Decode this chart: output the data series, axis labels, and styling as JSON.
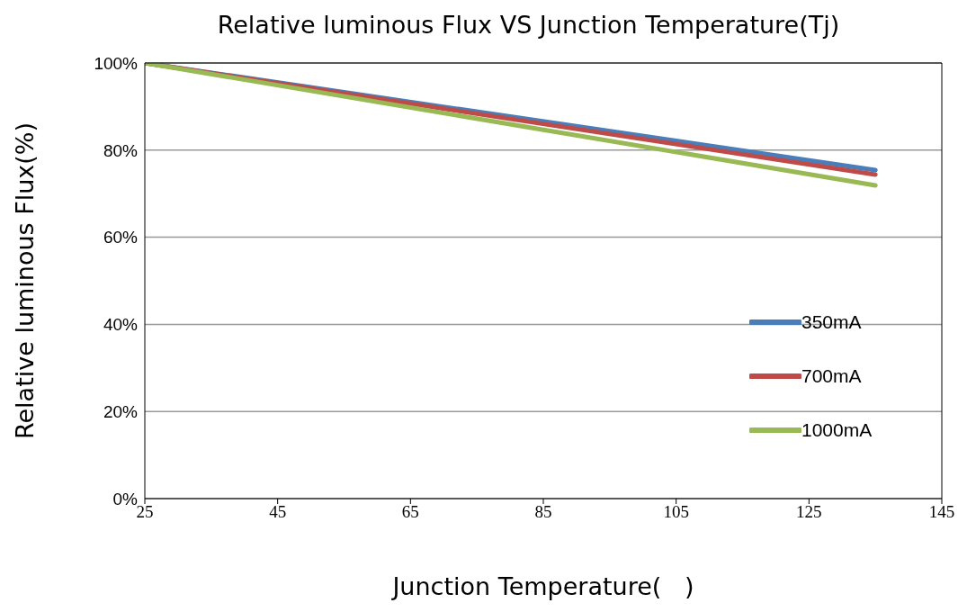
{
  "chart_data": {
    "type": "line",
    "title": "Relative luminous Flux VS Junction Temperature(Tj)",
    "xlabel": "Junction Temperature(   )",
    "ylabel": "Relative luminous Flux(%)",
    "x": [
      25,
      135
    ],
    "series": [
      {
        "name": "350mA",
        "color": "#4a7ebb",
        "values": [
          100,
          75.4
        ]
      },
      {
        "name": "700mA",
        "color": "#be4b48",
        "values": [
          100,
          74.4
        ]
      },
      {
        "name": "1000mA",
        "color": "#98b954",
        "values": [
          100,
          71.9
        ]
      }
    ],
    "xlim": [
      25,
      145
    ],
    "xticks": [
      25,
      45,
      65,
      85,
      105,
      125,
      145
    ],
    "ylim": [
      0,
      100
    ],
    "yticks": [
      {
        "value": 0,
        "label": "0%"
      },
      {
        "value": 20,
        "label": "20%"
      },
      {
        "value": 40,
        "label": "40%"
      },
      {
        "value": 60,
        "label": "60%"
      },
      {
        "value": 80,
        "label": "80%"
      },
      {
        "value": 100,
        "label": "100%"
      }
    ],
    "grid": "y",
    "legend": "right",
    "marker": "none",
    "line_style": "solid"
  }
}
